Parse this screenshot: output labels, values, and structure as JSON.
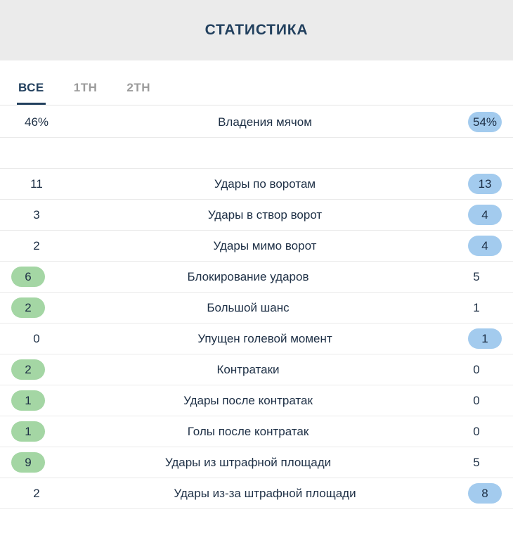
{
  "header": {
    "title": "СТАТИСТИКА"
  },
  "tabs": [
    {
      "key": "all",
      "label": "ВСЕ",
      "active": true
    },
    {
      "key": "1st-half",
      "label": "1ТН",
      "active": false
    },
    {
      "key": "2nd-half",
      "label": "2ТН",
      "active": false
    }
  ],
  "colors": {
    "header_bg": "#ebebeb",
    "title": "#22405e",
    "home_highlight": "#a4d6a4",
    "away_highlight": "#a3cbee",
    "divider": "#eaeaea",
    "inactive_tab": "#9b9b9b"
  },
  "stats": [
    {
      "label": "Владения мячом",
      "home": "46%",
      "away": "54%",
      "highlight": "away",
      "section": 1
    },
    {
      "label": "Удары по воротам",
      "home": "11",
      "away": "13",
      "highlight": "away",
      "section": 2
    },
    {
      "label": "Удары в створ ворот",
      "home": "3",
      "away": "4",
      "highlight": "away",
      "section": 2
    },
    {
      "label": "Удары мимо ворот",
      "home": "2",
      "away": "4",
      "highlight": "away",
      "section": 2
    },
    {
      "label": "Блокирование ударов",
      "home": "6",
      "away": "5",
      "highlight": "home",
      "section": 2
    },
    {
      "label": "Большой шанс",
      "home": "2",
      "away": "1",
      "highlight": "home",
      "section": 2
    },
    {
      "label": "Упущен голевой момент",
      "home": "0",
      "away": "1",
      "highlight": "away",
      "section": 2
    },
    {
      "label": "Контратаки",
      "home": "2",
      "away": "0",
      "highlight": "home",
      "section": 2
    },
    {
      "label": "Удары после контратак",
      "home": "1",
      "away": "0",
      "highlight": "home",
      "section": 2
    },
    {
      "label": "Голы после контратак",
      "home": "1",
      "away": "0",
      "highlight": "home",
      "section": 2
    },
    {
      "label": "Удары из штрафной площади",
      "home": "9",
      "away": "5",
      "highlight": "home",
      "section": 2
    },
    {
      "label": "Удары из-за штрафной площади",
      "home": "2",
      "away": "8",
      "highlight": "away",
      "section": 2
    }
  ]
}
